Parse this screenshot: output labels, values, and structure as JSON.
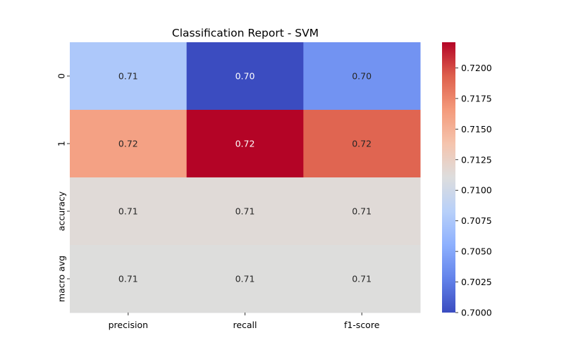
{
  "chart_data": {
    "type": "heatmap",
    "title": "Classification Report - SVM",
    "xlabel": "",
    "ylabel": "",
    "x_categories": [
      "precision",
      "recall",
      "f1-score"
    ],
    "y_categories": [
      "0",
      "1",
      "accuracy",
      "macro avg"
    ],
    "values": [
      [
        0.7076,
        0.7,
        0.7038
      ],
      [
        0.7161,
        0.7221,
        0.7191
      ],
      [
        0.7114,
        0.7114,
        0.7114
      ],
      [
        0.7111,
        0.7111,
        0.7111
      ]
    ],
    "cell_labels": [
      [
        "0.71",
        "0.70",
        "0.70"
      ],
      [
        "0.72",
        "0.72",
        "0.72"
      ],
      [
        "0.71",
        "0.71",
        "0.71"
      ],
      [
        "0.71",
        "0.71",
        "0.71"
      ]
    ],
    "colormap": "coolwarm",
    "colorbar": {
      "range": [
        0.7,
        0.7221
      ],
      "ticks": [
        0.7,
        0.7025,
        0.705,
        0.7075,
        0.71,
        0.7125,
        0.715,
        0.7175,
        0.72
      ],
      "tick_labels": [
        "0.7000",
        "0.7025",
        "0.7050",
        "0.7075",
        "0.7100",
        "0.7125",
        "0.7150",
        "0.7175",
        "0.7200"
      ]
    }
  }
}
